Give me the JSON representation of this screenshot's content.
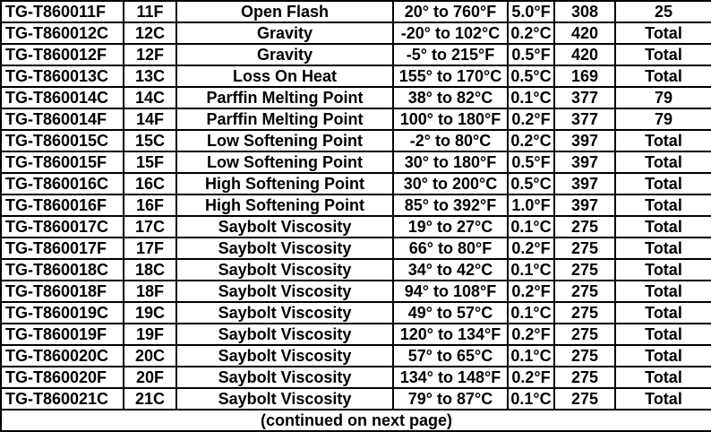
{
  "table": {
    "rows": [
      [
        "TG-T860011F",
        "11F",
        "Open Flash",
        "20° to 760°F",
        "5.0°F",
        "308",
        "25"
      ],
      [
        "TG-T860012C",
        "12C",
        "Gravity",
        "-20° to 102°C",
        "0.2°C",
        "420",
        "Total"
      ],
      [
        "TG-T860012F",
        "12F",
        "Gravity",
        "-5° to 215°F",
        "0.5°F",
        "420",
        "Total"
      ],
      [
        "TG-T860013C",
        "13C",
        "Loss On Heat",
        "155° to 170°C",
        "0.5°C",
        "169",
        "Total"
      ],
      [
        "TG-T860014C",
        "14C",
        "Parffin Melting Point",
        "38° to 82°C",
        "0.1°C",
        "377",
        "79"
      ],
      [
        "TG-T860014F",
        "14F",
        "Parffin Melting Point",
        "100° to 180°F",
        "0.2°F",
        "377",
        "79"
      ],
      [
        "TG-T860015C",
        "15C",
        "Low Softening Point",
        "-2° to 80°C",
        "0.2°C",
        "397",
        "Total"
      ],
      [
        "TG-T860015F",
        "15F",
        "Low Softening Point",
        "30° to 180°F",
        "0.5°F",
        "397",
        "Total"
      ],
      [
        "TG-T860016C",
        "16C",
        "High Softening Point",
        "30° to 200°C",
        "0.5°C",
        "397",
        "Total"
      ],
      [
        "TG-T860016F",
        "16F",
        "High Softening Point",
        "85° to 392°F",
        "1.0°F",
        "397",
        "Total"
      ],
      [
        "TG-T860017C",
        "17C",
        "Saybolt Viscosity",
        "19° to 27°C",
        "0.1°C",
        "275",
        "Total"
      ],
      [
        "TG-T860017F",
        "17F",
        "Saybolt Viscosity",
        "66° to 80°F",
        "0.2°F",
        "275",
        "Total"
      ],
      [
        "TG-T860018C",
        "18C",
        "Saybolt Viscosity",
        "34° to 42°C",
        "0.1°C",
        "275",
        "Total"
      ],
      [
        "TG-T860018F",
        "18F",
        "Saybolt Viscosity",
        "94° to 108°F",
        "0.2°F",
        "275",
        "Total"
      ],
      [
        "TG-T860019C",
        "19C",
        "Saybolt Viscosity",
        "49° to 57°C",
        "0.1°C",
        "275",
        "Total"
      ],
      [
        "TG-T860019F",
        "19F",
        "Saybolt Viscosity",
        "120° to 134°F",
        "0.2°F",
        "275",
        "Total"
      ],
      [
        "TG-T860020C",
        "20C",
        "Saybolt Viscosity",
        "57° to 65°C",
        "0.1°C",
        "275",
        "Total"
      ],
      [
        "TG-T860020F",
        "20F",
        "Saybolt Viscosity",
        "134° to 148°F",
        "0.2°F",
        "275",
        "Total"
      ],
      [
        "TG-T860021C",
        "21C",
        "Saybolt Viscosity",
        "79° to 87°C",
        "0.1°C",
        "275",
        "Total"
      ]
    ],
    "footer_note": "(continued on next page)"
  },
  "colors": {
    "border": "#000000",
    "text": "#000000",
    "background": "#ffffff"
  }
}
